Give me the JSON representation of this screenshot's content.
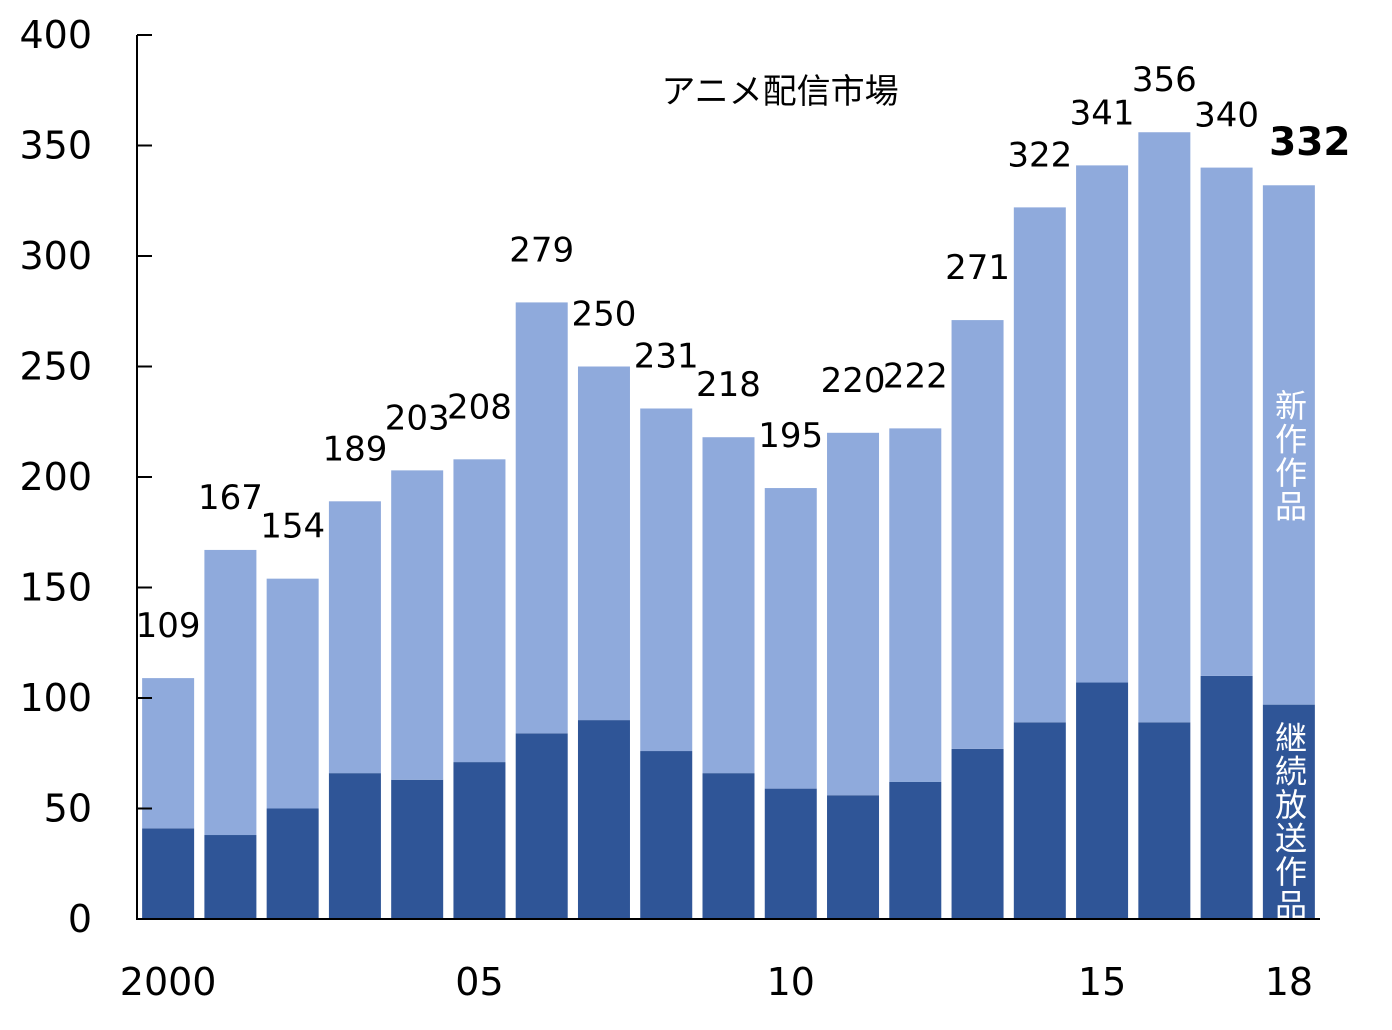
{
  "chart_data": {
    "type": "bar",
    "stacked": true,
    "title": "アニメ配信市場",
    "x": [
      2000,
      2001,
      2002,
      2003,
      2004,
      2005,
      2006,
      2007,
      2008,
      2009,
      2010,
      2011,
      2012,
      2013,
      2014,
      2015,
      2016,
      2017,
      2018
    ],
    "x_ticks": [
      {
        "value": 2000,
        "label": "2000"
      },
      {
        "value": 2005,
        "label": "05"
      },
      {
        "value": 2010,
        "label": "10"
      },
      {
        "value": 2015,
        "label": "15"
      },
      {
        "value": 2018,
        "label": "18"
      }
    ],
    "series": [
      {
        "name": "継続放送作品",
        "color": "#2F5597",
        "values": [
          41,
          38,
          50,
          66,
          63,
          71,
          84,
          90,
          76,
          66,
          59,
          56,
          62,
          77,
          89,
          107,
          89,
          110,
          97
        ]
      },
      {
        "name": "新作作品",
        "color": "#8FAADC",
        "values": [
          68,
          129,
          104,
          123,
          140,
          137,
          195,
          160,
          155,
          152,
          136,
          164,
          160,
          194,
          233,
          234,
          267,
          230,
          235
        ]
      }
    ],
    "data_labels": [
      109,
      167,
      154,
      189,
      203,
      208,
      279,
      250,
      231,
      218,
      195,
      220,
      222,
      271,
      322,
      341,
      356,
      340,
      332
    ],
    "ylim": [
      0,
      400
    ],
    "yticks": [
      0,
      50,
      100,
      150,
      200,
      250,
      300,
      350,
      400
    ],
    "grid": false,
    "legend": "inside-bar"
  }
}
